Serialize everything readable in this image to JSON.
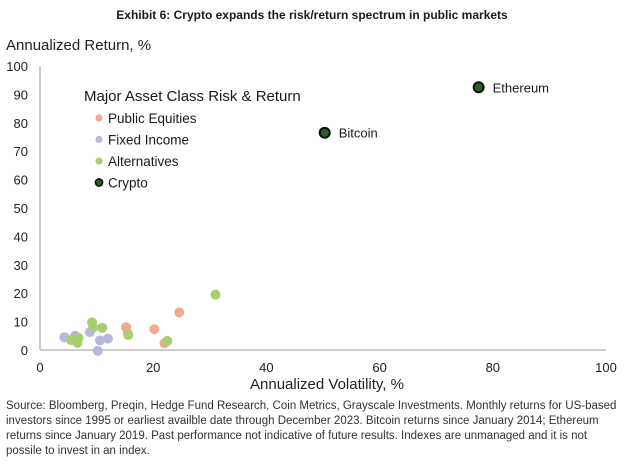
{
  "header": {
    "exhibit_title": "Exhibit 6: Crypto expands the risk/return spectrum in public markets"
  },
  "footer": {
    "source": "Source: Bloomberg, Preqin, Hedge Fund Research, Coin Metrics, Grayscale Investments. Monthly returns for US-based investors since 1995 or earliest availble date through December 2023. Bitcoin returns since January 2014; Ethereum returns since January 2019. Past performance not indicative of future results. Indexes are unmanaged and it is not possile to invest in an index."
  },
  "chart_data": {
    "type": "scatter",
    "title": "Major Asset Class Risk & Return",
    "xlabel": "Annualized Volatility, %",
    "ylabel": "Annualized Return, %",
    "xlim": [
      0,
      100
    ],
    "ylim": [
      0,
      100
    ],
    "xticks": [
      0,
      20,
      40,
      60,
      80,
      100
    ],
    "yticks": [
      0,
      10,
      20,
      30,
      40,
      50,
      60,
      70,
      80,
      90,
      100
    ],
    "grid": false,
    "legend_position": "top-left",
    "series": [
      {
        "name": "Public Equities",
        "color": "#f2a98c",
        "points": [
          {
            "x": 15.2,
            "y": 8.0
          },
          {
            "x": 15.5,
            "y": 6.0
          },
          {
            "x": 20.2,
            "y": 7.3
          },
          {
            "x": 22.0,
            "y": 2.4
          },
          {
            "x": 24.6,
            "y": 13.2
          }
        ]
      },
      {
        "name": "Fixed Income",
        "color": "#b9b6e0",
        "points": [
          {
            "x": 4.3,
            "y": 4.5
          },
          {
            "x": 6.2,
            "y": 5.0
          },
          {
            "x": 8.8,
            "y": 6.3
          },
          {
            "x": 10.2,
            "y": -0.3
          },
          {
            "x": 10.6,
            "y": 3.4
          },
          {
            "x": 12.0,
            "y": 4.0
          }
        ]
      },
      {
        "name": "Alternatives",
        "color": "#a8cf6f",
        "points": [
          {
            "x": 5.5,
            "y": 3.5
          },
          {
            "x": 6.6,
            "y": 2.5
          },
          {
            "x": 6.8,
            "y": 4.3
          },
          {
            "x": 9.2,
            "y": 9.7
          },
          {
            "x": 9.4,
            "y": 8.0
          },
          {
            "x": 11.0,
            "y": 7.8
          },
          {
            "x": 15.6,
            "y": 5.3
          },
          {
            "x": 22.5,
            "y": 3.2
          },
          {
            "x": 31.0,
            "y": 19.5
          }
        ]
      },
      {
        "name": "Crypto",
        "color": "#1f3a1f",
        "points": [
          {
            "x": 50.3,
            "y": 76.5,
            "label": "Bitcoin"
          },
          {
            "x": 77.5,
            "y": 92.5,
            "label": "Ethereum"
          }
        ]
      }
    ]
  }
}
